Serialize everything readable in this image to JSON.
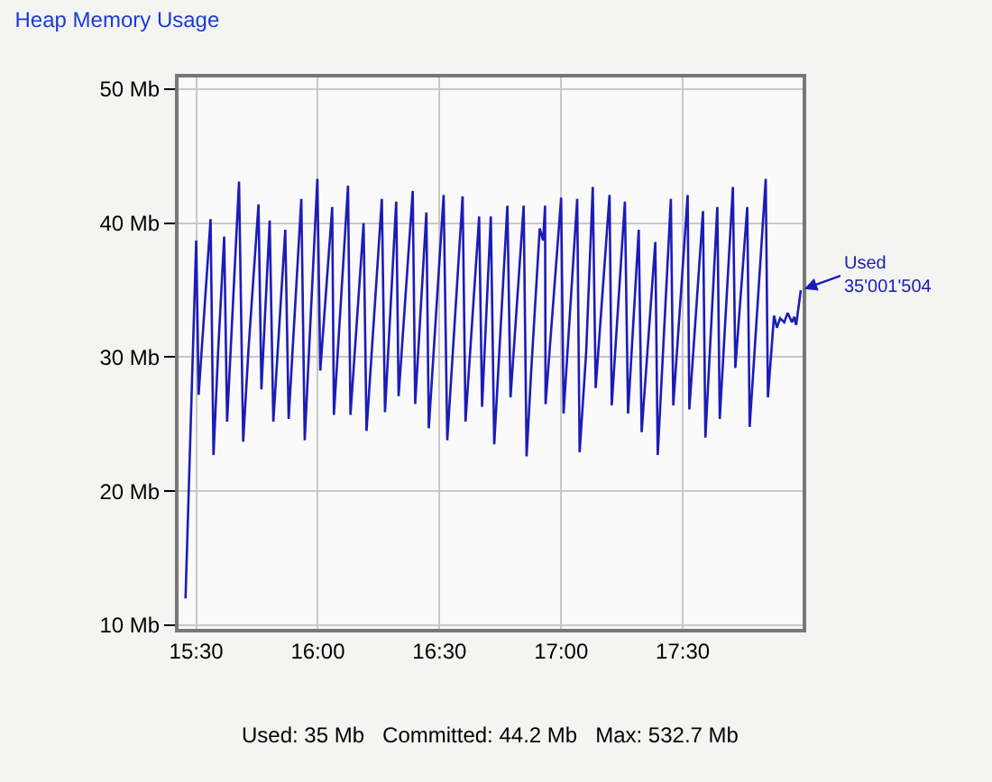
{
  "chart_data": {
    "type": "line",
    "title": "Heap Memory Usage",
    "x": [
      15.456,
      15.5,
      15.51,
      15.559,
      15.571,
      15.59,
      15.615,
      15.627,
      15.676,
      15.693,
      15.715,
      15.756,
      15.768,
      15.802,
      15.817,
      15.866,
      15.88,
      15.932,
      15.946,
      15.998,
      16.01,
      16.059,
      16.066,
      16.124,
      16.134,
      16.188,
      16.2,
      16.263,
      16.276,
      16.322,
      16.332,
      16.39,
      16.4,
      16.446,
      16.456,
      16.517,
      16.532,
      16.595,
      16.607,
      16.663,
      16.675,
      16.711,
      16.725,
      16.779,
      16.792,
      16.846,
      16.858,
      16.877,
      16.912,
      16.926,
      16.934,
      16.936,
      17.0,
      17.01,
      17.066,
      17.076,
      17.103,
      17.13,
      17.142,
      17.199,
      17.208,
      17.262,
      17.275,
      17.319,
      17.331,
      17.387,
      17.397,
      17.451,
      17.461,
      17.52,
      17.527,
      17.583,
      17.593,
      17.642,
      17.652,
      17.706,
      17.716,
      17.765,
      17.775,
      17.841,
      17.85,
      17.875,
      17.887,
      17.9,
      17.917,
      17.931,
      17.949,
      17.958,
      17.966,
      17.985
    ],
    "series": [
      {
        "color": "#1c1cb8",
        "values": [
          12.0,
          38.7,
          27.2,
          40.3,
          22.7,
          30.4,
          39.0,
          25.2,
          43.1,
          23.7,
          30.6,
          41.4,
          27.6,
          40.2,
          25.2,
          39.5,
          25.4,
          41.8,
          23.8,
          43.3,
          29.0,
          41.2,
          25.7,
          42.8,
          25.7,
          40.0,
          24.5,
          41.8,
          25.9,
          41.6,
          27.1,
          42.4,
          26.5,
          40.8,
          24.7,
          42.1,
          23.8,
          42.0,
          25.2,
          40.5,
          26.3,
          40.5,
          23.5,
          41.3,
          27.0,
          41.3,
          22.6,
          29.0,
          39.6,
          38.7,
          41.3,
          26.5,
          41.9,
          25.8,
          41.8,
          22.9,
          30.4,
          42.7,
          27.7,
          42.1,
          26.4,
          41.6,
          25.8,
          39.5,
          24.4,
          38.6,
          22.7,
          41.8,
          26.4,
          42.1,
          26.1,
          40.9,
          24.0,
          41.2,
          25.4,
          42.7,
          29.2,
          41.2,
          24.8,
          43.3,
          27.0,
          33.1,
          32.2,
          32.9,
          32.6,
          33.3,
          32.6,
          33.0,
          32.4,
          35.0
        ]
      }
    ],
    "xlim": [
      15.42,
      18.0
    ],
    "xticks": [
      {
        "value": 15.5,
        "label": "15:30"
      },
      {
        "value": 16.0,
        "label": "16:00"
      },
      {
        "value": 16.5,
        "label": "16:30"
      },
      {
        "value": 17.0,
        "label": "17:00"
      },
      {
        "value": 17.5,
        "label": "17:30"
      }
    ],
    "ylim": [
      9.6,
      51.0
    ],
    "yticks": [
      {
        "value": 10,
        "label": "10 Mb"
      },
      {
        "value": 20,
        "label": "20 Mb"
      },
      {
        "value": 30,
        "label": "30 Mb"
      },
      {
        "value": 40,
        "label": "40 Mb"
      },
      {
        "value": 50,
        "label": "50 Mb"
      }
    ],
    "grid": true,
    "line_style": "solid",
    "annotations": [
      {
        "text": "Used\n35'001'504",
        "x": 17.985,
        "y": 35.0
      },
      "Used: 35 Mb   Committed: 44.2 Mb   Max: 532.7 Mb"
    ]
  }
}
